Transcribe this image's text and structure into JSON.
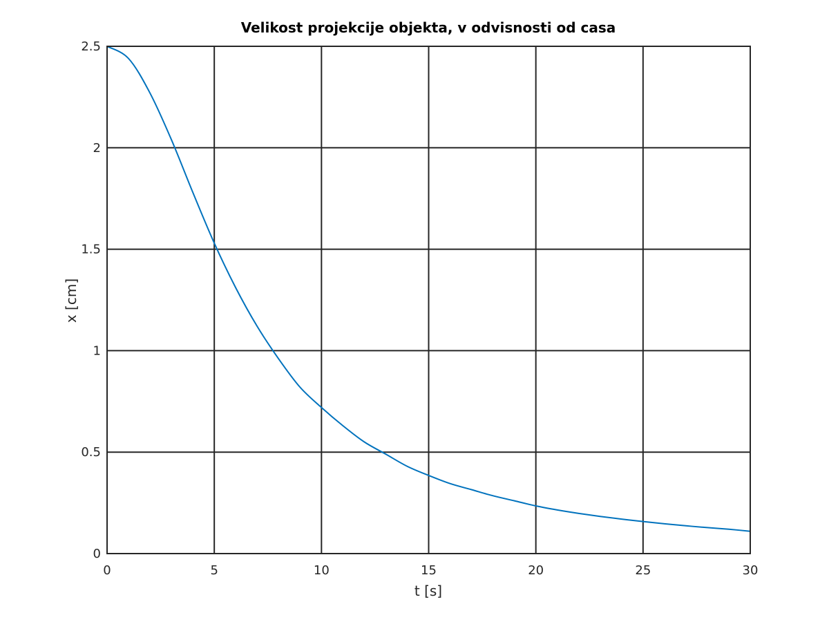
{
  "chart_data": {
    "type": "line",
    "title": "Velikost projekcije objekta, v odvisnosti od casa",
    "xlabel": "t [s]",
    "ylabel": "x [cm]",
    "xlim": [
      0,
      30
    ],
    "ylim": [
      0,
      2.5
    ],
    "xticks": [
      0,
      5,
      10,
      15,
      20,
      25,
      30
    ],
    "yticks": [
      0,
      0.5,
      1,
      1.5,
      2,
      2.5
    ],
    "xtick_labels": [
      "0",
      "5",
      "10",
      "15",
      "20",
      "25",
      "30"
    ],
    "ytick_labels": [
      "0",
      "0.5",
      "1",
      "1.5",
      "2",
      "2.5"
    ],
    "grid": true,
    "line_color": "#0072bd",
    "series": [
      {
        "x": [
          0,
          1,
          2,
          3,
          4,
          5,
          6,
          7,
          8,
          9,
          10,
          11,
          12,
          13,
          14,
          15,
          16,
          17,
          18,
          19,
          20,
          21,
          22,
          23,
          24,
          25,
          26,
          27,
          28,
          29,
          30
        ],
        "y": [
          2.5,
          2.44,
          2.27,
          2.04,
          1.78,
          1.53,
          1.31,
          1.12,
          0.96,
          0.82,
          0.72,
          0.63,
          0.55,
          0.49,
          0.43,
          0.385,
          0.345,
          0.315,
          0.285,
          0.26,
          0.235,
          0.215,
          0.198,
          0.183,
          0.17,
          0.158,
          0.147,
          0.137,
          0.128,
          0.12,
          0.11
        ]
      }
    ]
  }
}
